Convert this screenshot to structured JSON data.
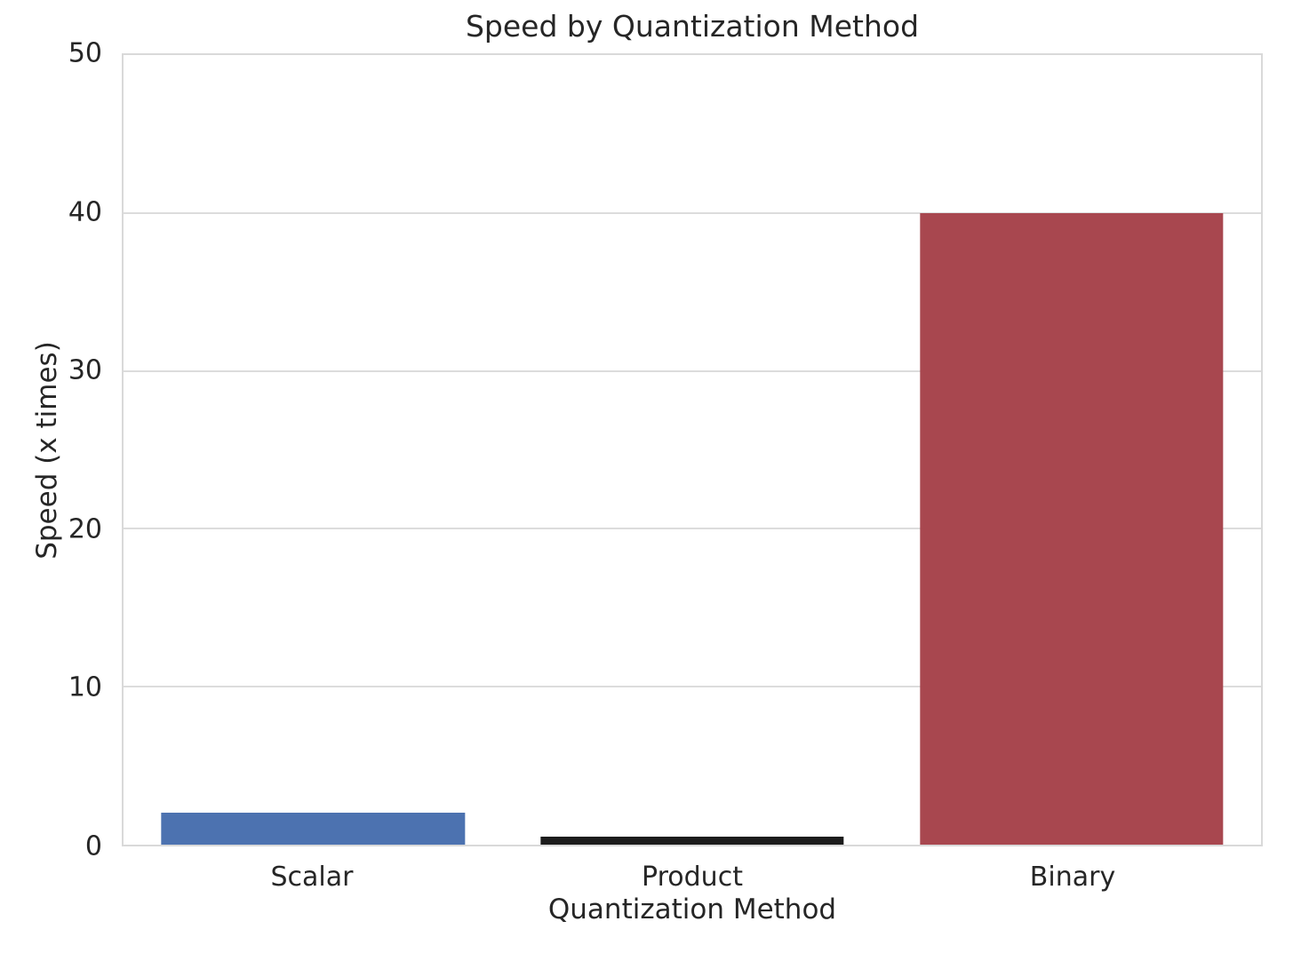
{
  "figure": {
    "background_color": "#ffffff",
    "text_color": "#262626",
    "grid_color": "#dcdcdc",
    "spine_color": "#d9d9d9"
  },
  "chart_data": {
    "type": "bar",
    "title": "Speed by Quantization Method",
    "xlabel": "Quantization Method",
    "ylabel": "Speed (x times)",
    "categories": [
      "Scalar",
      "Product",
      "Binary"
    ],
    "values": [
      2,
      0.5,
      40
    ],
    "bar_colors": [
      "#4C72B0",
      "#1C1C1C",
      "#A8474F"
    ],
    "ylim": [
      0,
      50
    ],
    "yticks": [
      0,
      10,
      20,
      30,
      40,
      50
    ],
    "grid": "horizontal",
    "legend": "none",
    "bar_width_fraction": 0.8
  }
}
